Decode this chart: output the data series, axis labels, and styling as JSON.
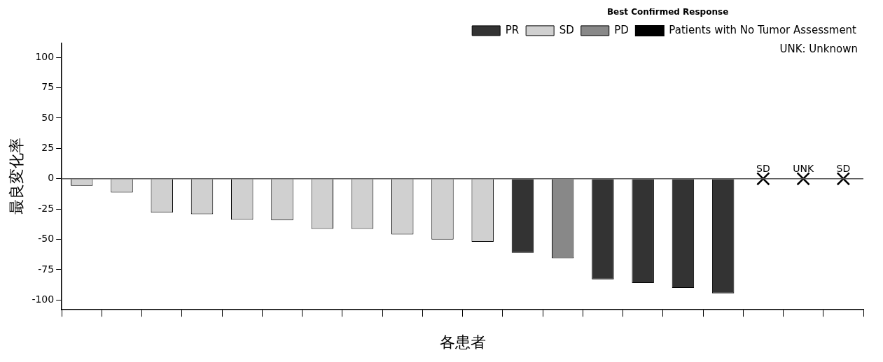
{
  "chart_data": {
    "type": "bar",
    "xlabel": "各患者",
    "ylabel": "最良変化率",
    "legend_title": "Best Confirmed Response",
    "legend": "top right",
    "grid": false,
    "categories": [
      null,
      null,
      null,
      null,
      null,
      null,
      null,
      null,
      null,
      null,
      null,
      null,
      null,
      null,
      null,
      null,
      null,
      null,
      null,
      null
    ],
    "series": [
      {
        "name": "PR",
        "color": "#333333",
        "values": [
          null,
          null,
          null,
          null,
          null,
          null,
          null,
          null,
          null,
          null,
          null,
          -61,
          null,
          -83,
          -86,
          -90,
          -94.5,
          null,
          null,
          null
        ]
      },
      {
        "name": "SD",
        "color": "#d0d0d0",
        "values": [
          -5.7,
          -11.3,
          -27.9,
          -29.3,
          -33.9,
          -34.3,
          -41.4,
          -41.4,
          -45.9,
          -50.1,
          -52,
          null,
          null,
          null,
          null,
          null,
          null,
          null,
          null,
          null
        ]
      },
      {
        "name": "PD",
        "color": "#888888",
        "values": [
          null,
          null,
          null,
          null,
          null,
          null,
          null,
          null,
          null,
          null,
          null,
          null,
          -65.6,
          null,
          null,
          null,
          null,
          null,
          null,
          null
        ]
      },
      {
        "name": "Patients with No Tumor Assessment",
        "type": "scatter",
        "marker": "cross",
        "color": "#000000",
        "values": [
          null,
          null,
          null,
          null,
          null,
          null,
          null,
          null,
          null,
          null,
          null,
          null,
          null,
          null,
          null,
          null,
          null,
          0,
          0,
          0
        ],
        "value_labels": [
          null,
          null,
          null,
          null,
          null,
          null,
          null,
          null,
          null,
          null,
          null,
          null,
          null,
          null,
          null,
          null,
          null,
          "SD",
          "UNK",
          "SD"
        ]
      }
    ],
    "annotations": [
      "UNK: Unknown"
    ],
    "ref_lines": [
      {
        "axis": "y",
        "value": 0,
        "color": "#555555"
      }
    ],
    "ylim": [
      -108,
      112
    ],
    "yticks": [
      -100,
      -75,
      -50,
      -25,
      0,
      25,
      50,
      75,
      100
    ]
  }
}
